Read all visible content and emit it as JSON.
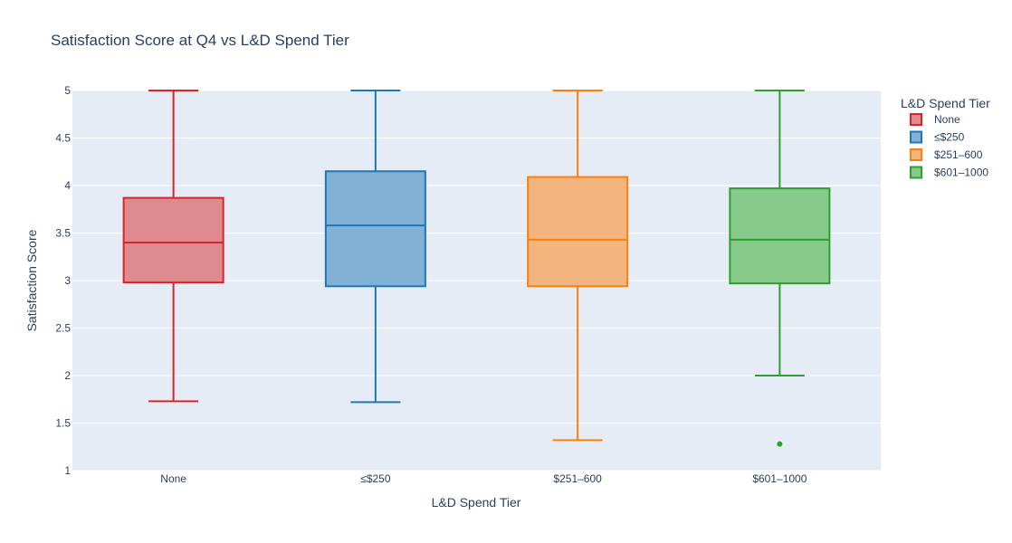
{
  "chart_data": {
    "type": "box",
    "title": "Satisfaction Score at Q4 vs L&D Spend Tier",
    "xlabel": "L&D Spend Tier",
    "ylabel": "Satisfaction Score",
    "ylim": [
      1,
      5
    ],
    "yticks": [
      1,
      1.5,
      2,
      2.5,
      3,
      3.5,
      4,
      4.5,
      5
    ],
    "ytick_labels": [
      "1",
      "1.5",
      "2",
      "2.5",
      "3",
      "3.5",
      "4",
      "4.5",
      "5"
    ],
    "grid": true,
    "legend": {
      "title": "L&D Spend Tier",
      "placement": "top-right"
    },
    "categories": [
      "None",
      "≤$250",
      "$251–600",
      "$601–1000"
    ],
    "series": [
      {
        "name": "None",
        "color": "#d62728",
        "fill": "#df8a8f",
        "whisker_low": 1.73,
        "q1": 2.98,
        "median": 3.4,
        "q3": 3.87,
        "whisker_high": 5.0,
        "outliers": []
      },
      {
        "name": "≤$250",
        "color": "#1f77b4",
        "fill": "#82b1d6",
        "whisker_low": 1.72,
        "q1": 2.94,
        "median": 3.58,
        "q3": 4.15,
        "whisker_high": 5.0,
        "outliers": []
      },
      {
        "name": "$251–600",
        "color": "#ff7f0e",
        "fill": "#f2b57e",
        "whisker_low": 1.32,
        "q1": 2.94,
        "median": 3.43,
        "q3": 4.09,
        "whisker_high": 5.0,
        "outliers": []
      },
      {
        "name": "$601–1000",
        "color": "#2ca02c",
        "fill": "#88c98c",
        "whisker_low": 2.0,
        "q1": 2.97,
        "median": 3.43,
        "q3": 3.97,
        "whisker_high": 5.0,
        "outliers": [
          1.28
        ]
      }
    ]
  }
}
